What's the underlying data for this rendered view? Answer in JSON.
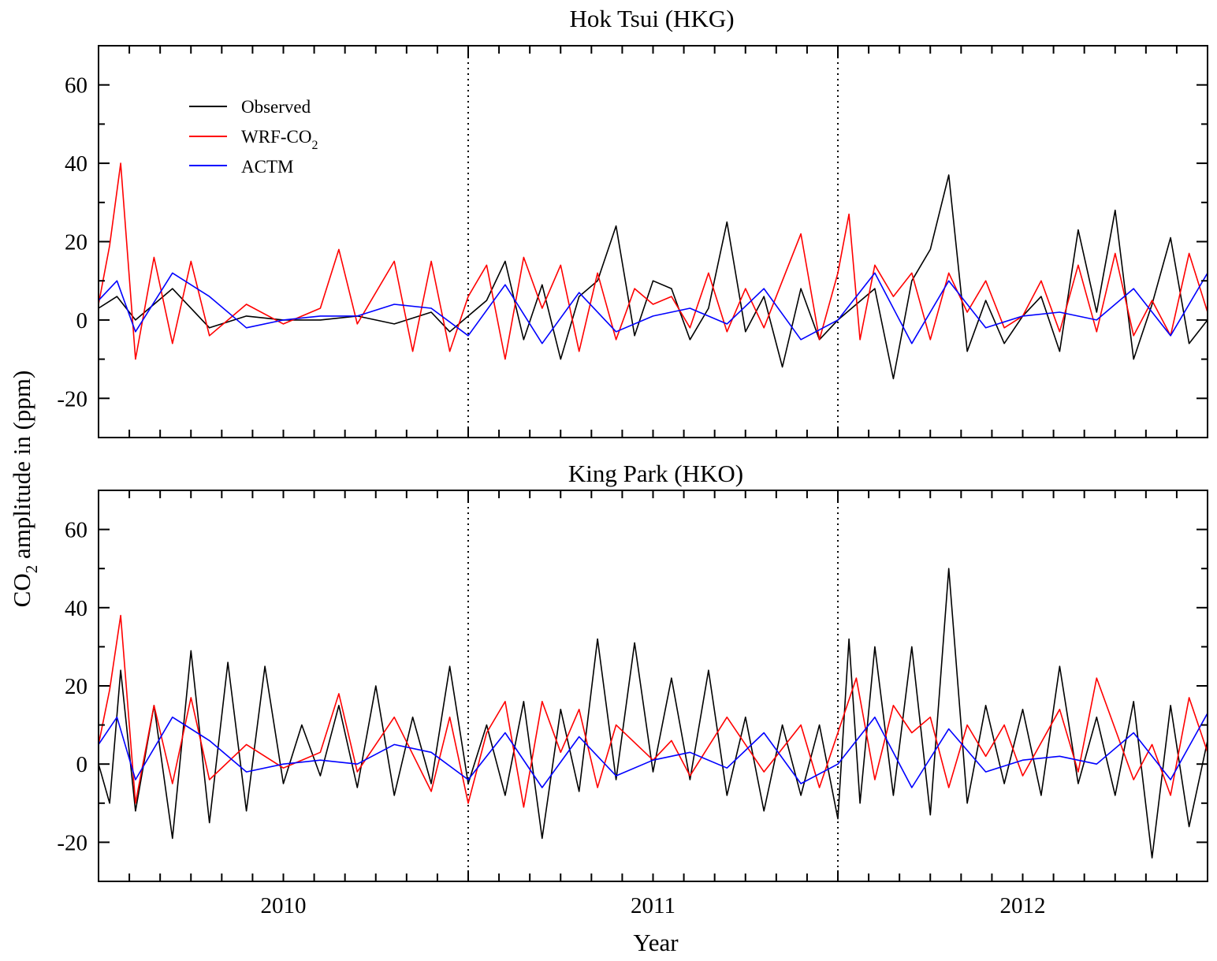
{
  "figure": {
    "ylabel_main": "CO",
    "ylabel_sub": "2",
    "ylabel_rest": " amplitude in (ppm)",
    "xlabel": "Year",
    "colors": {
      "observed": "#000000",
      "wrf": "#ff0000",
      "actm": "#0000ff"
    }
  },
  "legend": {
    "observed": "Observed",
    "wrf_main": "WRF-CO",
    "wrf_sub": "2",
    "actm": "ACTM"
  },
  "chart_data": [
    {
      "type": "line",
      "title": "Hok Tsui (HKG)",
      "xlabel": "Year",
      "ylabel": "CO2 amplitude in (ppm)",
      "xlim": [
        2009.5,
        2012.5
      ],
      "ylim": [
        -30,
        70
      ],
      "yticks": [
        -20,
        0,
        20,
        40,
        60
      ],
      "xtick_labels": [
        "2010",
        "2011",
        "2012"
      ],
      "xtick_label_positions": [
        2010.0,
        2011.0,
        2012.0
      ],
      "year_boundaries": [
        2010.5,
        2011.5
      ],
      "legend_position": "top-left",
      "series": [
        {
          "name": "Observed",
          "color": "#000000",
          "x": [
            2009.5,
            2009.55,
            2009.6,
            2009.7,
            2009.8,
            2009.9,
            2010.0,
            2010.1,
            2010.2,
            2010.3,
            2010.4,
            2010.45,
            2010.5,
            2010.55,
            2010.6,
            2010.65,
            2010.7,
            2010.75,
            2010.8,
            2010.85,
            2010.9,
            2010.95,
            2011.0,
            2011.05,
            2011.1,
            2011.15,
            2011.2,
            2011.25,
            2011.3,
            2011.35,
            2011.4,
            2011.45,
            2011.5,
            2011.55,
            2011.6,
            2011.65,
            2011.7,
            2011.75,
            2011.8,
            2011.85,
            2011.9,
            2011.95,
            2012.0,
            2012.05,
            2012.1,
            2012.15,
            2012.2,
            2012.25,
            2012.3,
            2012.35,
            2012.4,
            2012.45,
            2012.5
          ],
          "y": [
            3,
            6,
            0,
            8,
            -2,
            1,
            0,
            0,
            1,
            -1,
            2,
            -3,
            1,
            5,
            15,
            -5,
            9,
            -10,
            6,
            10,
            24,
            -4,
            10,
            8,
            -5,
            3,
            25,
            -3,
            6,
            -12,
            8,
            -5,
            0,
            4,
            8,
            -15,
            10,
            18,
            37,
            -8,
            5,
            -6,
            1,
            6,
            -8,
            23,
            2,
            28,
            -10,
            4,
            21,
            -6,
            0
          ]
        },
        {
          "name": "WRF-CO2",
          "color": "#ff0000",
          "x": [
            2009.5,
            2009.53,
            2009.56,
            2009.6,
            2009.65,
            2009.7,
            2009.75,
            2009.8,
            2009.9,
            2010.0,
            2010.1,
            2010.15,
            2010.2,
            2010.3,
            2010.35,
            2010.4,
            2010.45,
            2010.5,
            2010.55,
            2010.6,
            2010.65,
            2010.7,
            2010.75,
            2010.8,
            2010.85,
            2010.9,
            2010.95,
            2011.0,
            2011.05,
            2011.1,
            2011.15,
            2011.2,
            2011.25,
            2011.3,
            2011.35,
            2011.4,
            2011.45,
            2011.5,
            2011.53,
            2011.56,
            2011.6,
            2011.65,
            2011.7,
            2011.75,
            2011.8,
            2011.85,
            2011.9,
            2011.95,
            2012.0,
            2012.05,
            2012.1,
            2012.15,
            2012.2,
            2012.25,
            2012.3,
            2012.35,
            2012.4,
            2012.45,
            2012.5
          ],
          "y": [
            4,
            19,
            40,
            -10,
            16,
            -6,
            15,
            -4,
            4,
            -1,
            3,
            18,
            -1,
            15,
            -8,
            15,
            -8,
            6,
            14,
            -10,
            16,
            3,
            14,
            -8,
            12,
            -5,
            8,
            4,
            6,
            -2,
            12,
            -3,
            8,
            -2,
            10,
            22,
            -5,
            12,
            27,
            -5,
            14,
            6,
            12,
            -5,
            12,
            2,
            10,
            -2,
            1,
            10,
            -3,
            14,
            -3,
            17,
            -4,
            5,
            -4,
            17,
            2
          ]
        },
        {
          "name": "ACTM",
          "color": "#0000ff",
          "x": [
            2009.5,
            2009.55,
            2009.6,
            2009.7,
            2009.8,
            2009.9,
            2010.0,
            2010.1,
            2010.2,
            2010.3,
            2010.4,
            2010.5,
            2010.6,
            2010.7,
            2010.8,
            2010.9,
            2011.0,
            2011.1,
            2011.2,
            2011.3,
            2011.4,
            2011.5,
            2011.6,
            2011.7,
            2011.8,
            2011.9,
            2012.0,
            2012.1,
            2012.2,
            2012.3,
            2012.4,
            2012.5
          ],
          "y": [
            5,
            10,
            -3,
            12,
            6,
            -2,
            0,
            1,
            1,
            4,
            3,
            -4,
            9,
            -6,
            7,
            -3,
            1,
            3,
            -1,
            8,
            -5,
            0,
            12,
            -6,
            10,
            -2,
            1,
            2,
            0,
            8,
            -4,
            12
          ]
        }
      ]
    },
    {
      "type": "line",
      "title": "King Park (HKO)",
      "xlabel": "Year",
      "ylabel": "CO2 amplitude in (ppm)",
      "xlim": [
        2009.5,
        2012.5
      ],
      "ylim": [
        -30,
        70
      ],
      "yticks": [
        -20,
        0,
        20,
        40,
        60
      ],
      "xtick_labels": [
        "2010",
        "2011",
        "2012"
      ],
      "xtick_label_positions": [
        2010.0,
        2011.0,
        2012.0
      ],
      "year_boundaries": [
        2010.5,
        2011.5
      ],
      "series": [
        {
          "name": "Observed",
          "color": "#000000",
          "x": [
            2009.5,
            2009.53,
            2009.56,
            2009.6,
            2009.65,
            2009.7,
            2009.75,
            2009.8,
            2009.85,
            2009.9,
            2009.95,
            2010.0,
            2010.05,
            2010.1,
            2010.15,
            2010.2,
            2010.25,
            2010.3,
            2010.35,
            2010.4,
            2010.45,
            2010.5,
            2010.55,
            2010.6,
            2010.65,
            2010.7,
            2010.75,
            2010.8,
            2010.85,
            2010.9,
            2010.95,
            2011.0,
            2011.05,
            2011.1,
            2011.15,
            2011.2,
            2011.25,
            2011.3,
            2011.35,
            2011.4,
            2011.45,
            2011.5,
            2011.53,
            2011.56,
            2011.6,
            2011.65,
            2011.7,
            2011.75,
            2011.8,
            2011.85,
            2011.9,
            2011.95,
            2012.0,
            2012.05,
            2012.1,
            2012.15,
            2012.2,
            2012.25,
            2012.3,
            2012.35,
            2012.4,
            2012.45,
            2012.5
          ],
          "y": [
            0,
            -10,
            24,
            -12,
            15,
            -19,
            29,
            -15,
            26,
            -12,
            25,
            -5,
            10,
            -3,
            15,
            -6,
            20,
            -8,
            12,
            -5,
            25,
            -5,
            10,
            -8,
            16,
            -19,
            14,
            -7,
            32,
            -4,
            31,
            -2,
            22,
            -4,
            24,
            -8,
            12,
            -12,
            10,
            -8,
            10,
            -14,
            32,
            -10,
            30,
            -8,
            30,
            -13,
            50,
            -10,
            15,
            -5,
            14,
            -8,
            25,
            -5,
            12,
            -8,
            16,
            -24,
            15,
            -16,
            6
          ]
        },
        {
          "name": "WRF-CO2",
          "color": "#ff0000",
          "x": [
            2009.5,
            2009.53,
            2009.56,
            2009.6,
            2009.65,
            2009.7,
            2009.75,
            2009.8,
            2009.9,
            2010.0,
            2010.1,
            2010.15,
            2010.2,
            2010.3,
            2010.4,
            2010.45,
            2010.5,
            2010.55,
            2010.6,
            2010.65,
            2010.7,
            2010.75,
            2010.8,
            2010.85,
            2010.9,
            2011.0,
            2011.05,
            2011.1,
            2011.2,
            2011.3,
            2011.4,
            2011.45,
            2011.5,
            2011.55,
            2011.6,
            2011.65,
            2011.7,
            2011.75,
            2011.8,
            2011.85,
            2011.9,
            2011.95,
            2012.0,
            2012.1,
            2012.15,
            2012.2,
            2012.3,
            2012.35,
            2012.4,
            2012.45,
            2012.5
          ],
          "y": [
            5,
            19,
            38,
            -10,
            15,
            -5,
            17,
            -4,
            5,
            -1,
            3,
            18,
            -2,
            12,
            -7,
            12,
            -10,
            8,
            16,
            -11,
            16,
            3,
            14,
            -6,
            10,
            1,
            6,
            -3,
            12,
            -2,
            10,
            -6,
            8,
            22,
            -4,
            15,
            8,
            12,
            -6,
            10,
            2,
            10,
            -3,
            14,
            -2,
            22,
            -4,
            5,
            -8,
            17,
            3
          ]
        },
        {
          "name": "ACTM",
          "color": "#0000ff",
          "x": [
            2009.5,
            2009.55,
            2009.6,
            2009.7,
            2009.8,
            2009.9,
            2010.0,
            2010.1,
            2010.2,
            2010.3,
            2010.4,
            2010.5,
            2010.6,
            2010.7,
            2010.8,
            2010.9,
            2011.0,
            2011.1,
            2011.2,
            2011.3,
            2011.4,
            2011.5,
            2011.6,
            2011.7,
            2011.8,
            2011.9,
            2012.0,
            2012.1,
            2012.2,
            2012.3,
            2012.4,
            2012.5
          ],
          "y": [
            5,
            12,
            -4,
            12,
            6,
            -2,
            0,
            1,
            0,
            5,
            3,
            -4,
            8,
            -6,
            7,
            -3,
            1,
            3,
            -1,
            8,
            -5,
            0,
            12,
            -6,
            9,
            -2,
            1,
            2,
            0,
            8,
            -4,
            13
          ]
        }
      ]
    }
  ]
}
